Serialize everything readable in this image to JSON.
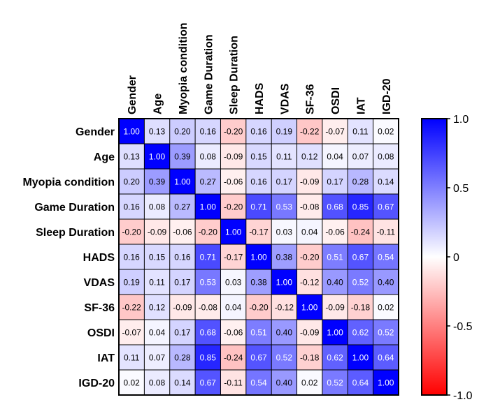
{
  "chart_data": {
    "type": "heatmap",
    "title": "",
    "rows": [
      "Gender",
      "Age",
      "Myopia condition",
      "Game Duration",
      "Sleep Duration",
      "HADS",
      "VDAS",
      "SF-36",
      "OSDI",
      "IAT",
      "IGD-20"
    ],
    "columns": [
      "Gender",
      "Age",
      "Myopia condition",
      "Game Duration",
      "Sleep Duration",
      "HADS",
      "VDAS",
      "SF-36",
      "OSDI",
      "IAT",
      "IGD-20"
    ],
    "values": [
      [
        1.0,
        0.13,
        0.2,
        0.16,
        -0.2,
        0.16,
        0.19,
        -0.22,
        -0.07,
        0.11,
        0.02
      ],
      [
        0.13,
        1.0,
        0.39,
        0.08,
        -0.09,
        0.15,
        0.11,
        0.12,
        0.04,
        0.07,
        0.08
      ],
      [
        0.2,
        0.39,
        1.0,
        0.27,
        -0.06,
        0.16,
        0.17,
        -0.09,
        0.17,
        0.28,
        0.14
      ],
      [
        0.16,
        0.08,
        0.27,
        1.0,
        -0.2,
        0.71,
        0.53,
        -0.08,
        0.68,
        0.85,
        0.67
      ],
      [
        -0.2,
        -0.09,
        -0.06,
        -0.2,
        1.0,
        -0.17,
        0.03,
        0.04,
        -0.06,
        -0.24,
        -0.11
      ],
      [
        0.16,
        0.15,
        0.16,
        0.71,
        -0.17,
        1.0,
        0.38,
        -0.2,
        0.51,
        0.67,
        0.54
      ],
      [
        0.19,
        0.11,
        0.17,
        0.53,
        0.03,
        0.38,
        1.0,
        -0.12,
        0.4,
        0.52,
        0.4
      ],
      [
        -0.22,
        0.12,
        -0.09,
        -0.08,
        0.04,
        -0.2,
        -0.12,
        1.0,
        -0.09,
        -0.18,
        0.02
      ],
      [
        -0.07,
        0.04,
        0.17,
        0.68,
        -0.06,
        0.51,
        0.4,
        -0.09,
        1.0,
        0.62,
        0.52
      ],
      [
        0.11,
        0.07,
        0.28,
        0.85,
        -0.24,
        0.67,
        0.52,
        -0.18,
        0.62,
        1.0,
        0.64
      ],
      [
        0.02,
        0.08,
        0.14,
        0.67,
        -0.11,
        0.54,
        0.4,
        0.02,
        0.52,
        0.64,
        1.0
      ]
    ],
    "colorbar": {
      "min": -1.0,
      "max": 1.0,
      "ticks": [
        1.0,
        0.5,
        0,
        -0.5,
        -1.0
      ],
      "tick_labels": [
        "1.0",
        "0.5",
        "0",
        "-0.5",
        "-1.0"
      ],
      "color_min": "#ff0000",
      "color_mid": "#ffffff",
      "color_max": "#0000ff"
    },
    "value_format": "2 decimals"
  }
}
